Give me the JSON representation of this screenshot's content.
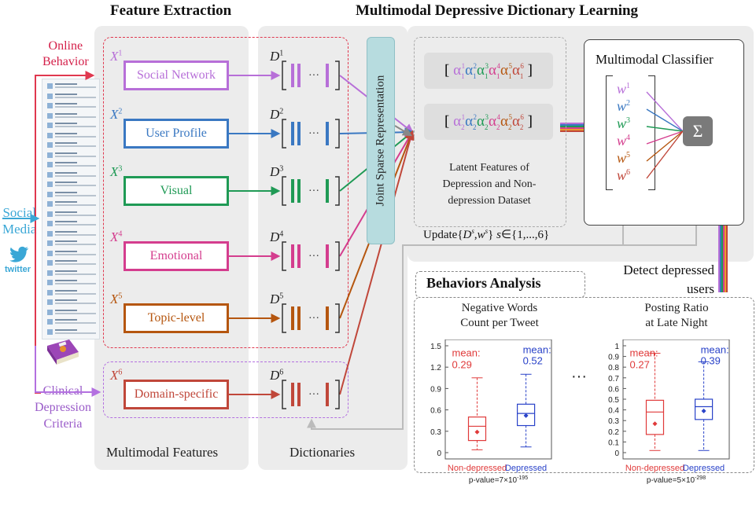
{
  "titles": {
    "feature_extraction": "Feature Extraction",
    "dictionary_learning": "Multimodal Depressive Dictionary Learning"
  },
  "left": {
    "online_behavior": "Online\nBehavior",
    "social_media": "Social\nMedia",
    "twitter": "twitter",
    "clinical": "Clinical\nDepression\nCriteria"
  },
  "features": [
    {
      "x": "X",
      "sup": "1",
      "label": "Social Network",
      "color": "#b76fd8"
    },
    {
      "x": "X",
      "sup": "2",
      "label": "User Profile",
      "color": "#3a78c2"
    },
    {
      "x": "X",
      "sup": "3",
      "label": "Visual",
      "color": "#1f9a55"
    },
    {
      "x": "X",
      "sup": "4",
      "label": "Emotional",
      "color": "#d43d8e"
    },
    {
      "x": "X",
      "sup": "5",
      "label": "Topic-level",
      "color": "#b5560f"
    },
    {
      "x": "X",
      "sup": "6",
      "label": "Domain-specific",
      "color": "#c0473a"
    }
  ],
  "dictionaries": [
    {
      "d": "D",
      "sup": "1",
      "color": "#b76fd8"
    },
    {
      "d": "D",
      "sup": "2",
      "color": "#3a78c2"
    },
    {
      "d": "D",
      "sup": "3",
      "color": "#1f9a55"
    },
    {
      "d": "D",
      "sup": "4",
      "color": "#d43d8e"
    },
    {
      "d": "D",
      "sup": "5",
      "color": "#b5560f"
    },
    {
      "d": "D",
      "sup": "6",
      "color": "#c0473a"
    }
  ],
  "bottom_labels": {
    "multimodal_features": "Multimodal Features",
    "dictionaries": "Dictionaries"
  },
  "joint_sparse": "Joint Sparse Representation",
  "latent": {
    "text": "Latent Features of\nDepression and Non-\ndepression Dataset",
    "row1": [
      "α",
      "1",
      "1",
      "α",
      "1",
      "2",
      "α",
      "1",
      "3",
      "α",
      "1",
      "4",
      "α",
      "1",
      "5",
      "α",
      "1",
      "6"
    ],
    "row2": [
      "α",
      "2",
      "1",
      "α",
      "2",
      "2",
      "α",
      "2",
      "3",
      "α",
      "2",
      "4",
      "α",
      "2",
      "5",
      "α",
      "2",
      "6"
    ]
  },
  "update": "Update{D , w } s∈{1,...,6}",
  "classifier": {
    "title": "Multimodal Classifier",
    "weights": [
      {
        "w": "w",
        "sup": "1",
        "color": "#b76fd8"
      },
      {
        "w": "w",
        "sup": "2",
        "color": "#3a78c2"
      },
      {
        "w": "w",
        "sup": "3",
        "color": "#1f9a55"
      },
      {
        "w": "w",
        "sup": "4",
        "color": "#d43d8e"
      },
      {
        "w": "w",
        "sup": "5",
        "color": "#b5560f"
      },
      {
        "w": "w",
        "sup": "6",
        "color": "#c0473a"
      }
    ],
    "sum": "Σ"
  },
  "detect": "Detect depressed\nusers",
  "behaviors": {
    "title": "Behaviors Analysis",
    "ellipsis": "···"
  },
  "chart_data": [
    {
      "type": "box",
      "title": "Negative Words\nCount per Tweet",
      "categories": [
        "Non-depressed",
        "Depressed"
      ],
      "ylim": [
        0,
        1.5
      ],
      "yticks": [
        "0",
        "0.3",
        "0.6",
        "0.9",
        "1.2",
        "1.5"
      ],
      "series": [
        {
          "name": "Non-depressed",
          "min": 0.04,
          "q1": 0.17,
          "median": 0.37,
          "q3": 0.5,
          "max": 1.05,
          "mean": 0.29,
          "color": "#e03a3a"
        },
        {
          "name": "Depressed",
          "min": 0.08,
          "q1": 0.38,
          "median": 0.55,
          "q3": 0.68,
          "max": 1.1,
          "mean": 0.52,
          "color": "#2a43c9"
        }
      ],
      "mean_label": "mean:",
      "mean_values": [
        "0.29",
        "0.52"
      ],
      "pvalue": "p-value=7×10",
      "pvalue_exp": "-195"
    },
    {
      "type": "box",
      "title": "Posting Ratio\nat Late Night",
      "categories": [
        "Non-depressed",
        "Depressed"
      ],
      "ylim": [
        0,
        1.0
      ],
      "yticks": [
        "0",
        "0.1",
        "0.2",
        "0.3",
        "0.4",
        "0.5",
        "0.6",
        "0.7",
        "0.8",
        "0.9",
        "1"
      ],
      "series": [
        {
          "name": "Non-depressed",
          "min": 0.02,
          "q1": 0.17,
          "median": 0.38,
          "q3": 0.49,
          "max": 0.93,
          "mean": 0.27,
          "color": "#e03a3a"
        },
        {
          "name": "Depressed",
          "min": 0.02,
          "q1": 0.31,
          "median": 0.43,
          "q3": 0.5,
          "max": 0.85,
          "mean": 0.39,
          "color": "#2a43c9"
        }
      ],
      "mean_label": "mean:",
      "mean_values": [
        "0.27",
        "0.39"
      ],
      "pvalue": "p-value=5×10",
      "pvalue_exp": "-298"
    }
  ]
}
